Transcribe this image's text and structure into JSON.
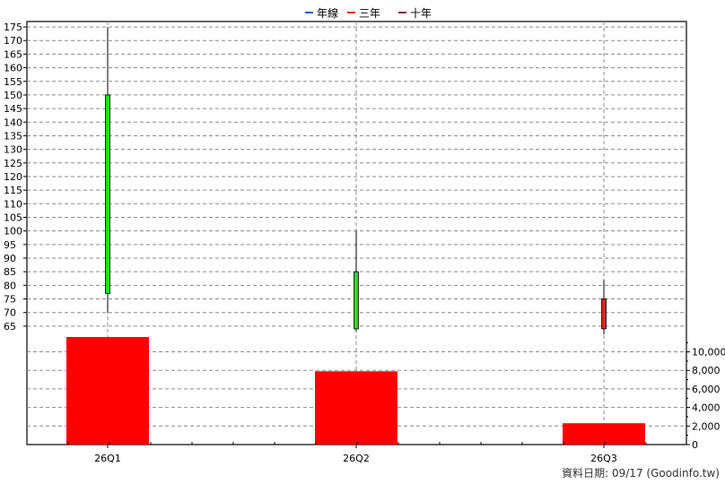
{
  "legend": [
    {
      "label": "年線",
      "color": "#1f5fbf"
    },
    {
      "label": "三年",
      "color": "#e02020"
    },
    {
      "label": "十年",
      "color": "#8b1a3a"
    }
  ],
  "footer": "資料日期: 09/17  (Goodinfo.tw)",
  "colors": {
    "up": "#22dd22",
    "down": "#dd2222",
    "volume": "#ff0000",
    "wick": "#000000",
    "grid": "#8a8a8a"
  },
  "chart_data": [
    {
      "type": "candlestick",
      "categories": [
        "26Q1",
        "26Q2",
        "26Q3"
      ],
      "series": [
        {
          "x": "26Q1",
          "open": 77,
          "high": 175,
          "low": 70,
          "close": 150
        },
        {
          "x": "26Q2",
          "open": 64,
          "high": 100,
          "low": 63,
          "close": 85
        },
        {
          "x": "26Q3",
          "open": 75,
          "high": 82,
          "low": 62,
          "close": 64
        }
      ],
      "yticks": [
        65,
        70,
        75,
        80,
        85,
        90,
        95,
        100,
        105,
        110,
        115,
        120,
        125,
        130,
        135,
        140,
        145,
        150,
        155,
        160,
        165,
        170,
        175
      ],
      "ylim": [
        61,
        177
      ],
      "grid": true,
      "legend_position": "top-center"
    },
    {
      "type": "bar",
      "categories": [
        "26Q1",
        "26Q2",
        "26Q3"
      ],
      "values": [
        11600,
        7900,
        2300
      ],
      "yticks": [
        "0",
        "2,000",
        "4,000",
        "6,000",
        "8,000",
        "10,000"
      ],
      "ytick_values": [
        0,
        2000,
        4000,
        6000,
        8000,
        10000
      ],
      "ylim": [
        0,
        11600
      ],
      "grid": true
    }
  ]
}
